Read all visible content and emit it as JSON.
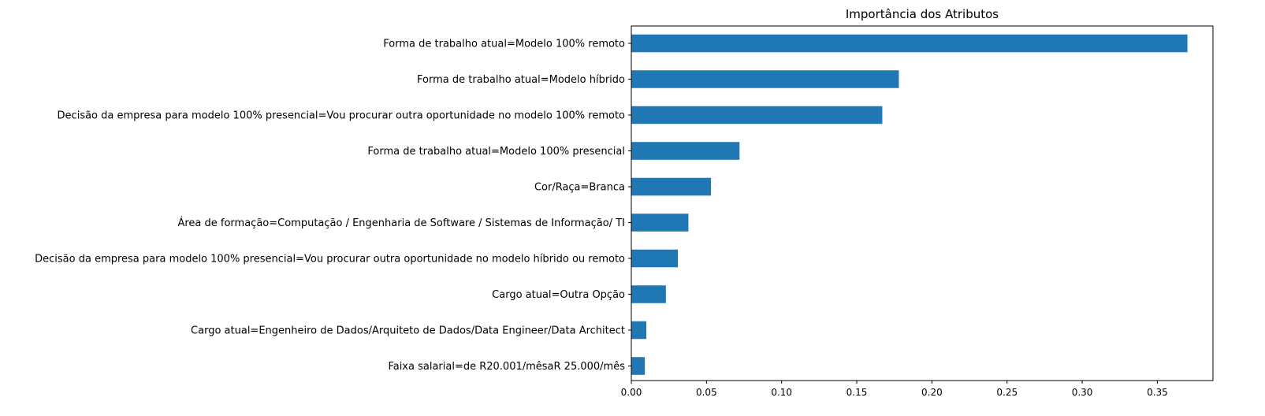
{
  "chart_data": {
    "type": "bar",
    "orientation": "horizontal",
    "title": "Importância dos Atributos",
    "xlabel": "",
    "ylabel": "",
    "xlim": [
      0,
      0.387
    ],
    "xticks": [
      "0.00",
      "0.05",
      "0.10",
      "0.15",
      "0.20",
      "0.25",
      "0.30",
      "0.35"
    ],
    "xtick_values": [
      0,
      0.05,
      0.1,
      0.15,
      0.2,
      0.25,
      0.3,
      0.35
    ],
    "grid": false,
    "legend": "none",
    "bar_color": "#1f77b4",
    "categories": [
      "Forma de trabalho atual=Modelo 100% remoto",
      "Forma de trabalho atual=Modelo híbrido",
      "Decisão da empresa para modelo 100% presencial=Vou procurar outra oportunidade no modelo 100% remoto",
      "Forma de trabalho atual=Modelo 100% presencial",
      "Cor/Raça=Branca",
      "Área de formação=Computação / Engenharia de Software / Sistemas de Informação/ TI",
      "Decisão da empresa para modelo 100% presencial=Vou procurar outra oportunidade no modelo híbrido ou remoto",
      "Cargo atual=Outra Opção",
      "Cargo atual=Engenheiro de Dados/Arquiteto de Dados/Data Engineer/Data Architect",
      "Faixa salarial=de R20.001/mêsaR 25.000/mês"
    ],
    "values": [
      0.37,
      0.178,
      0.167,
      0.072,
      0.053,
      0.038,
      0.031,
      0.023,
      0.01,
      0.009
    ]
  }
}
